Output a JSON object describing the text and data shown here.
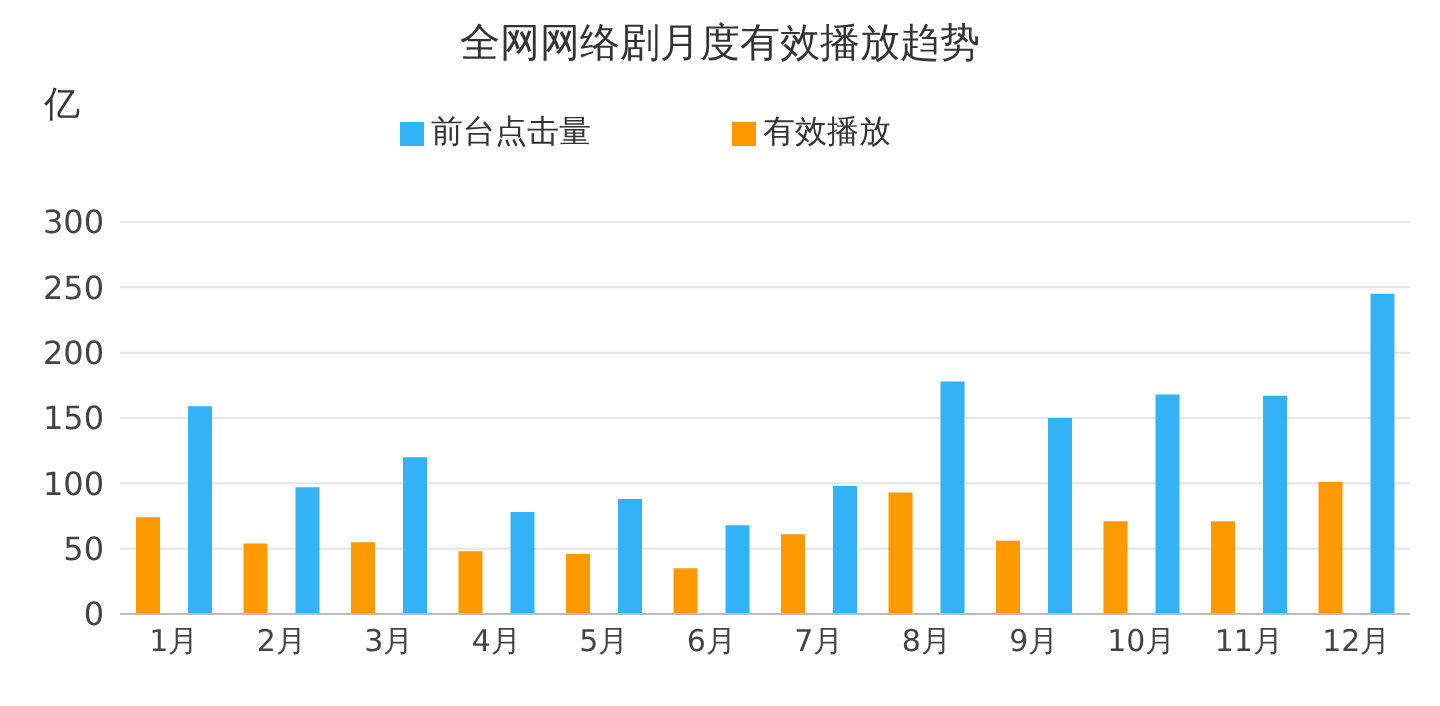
{
  "chart_data": {
    "type": "bar",
    "title": "全网网络剧月度有效播放趋势",
    "ylabel": "亿",
    "categories": [
      "1月",
      "2月",
      "3月",
      "4月",
      "5月",
      "6月",
      "7月",
      "8月",
      "9月",
      "10月",
      "11月",
      "12月"
    ],
    "series": [
      {
        "name": "有效播放",
        "color": "#ff9900",
        "values": [
          74,
          54,
          55,
          48,
          46,
          35,
          61,
          93,
          56,
          71,
          71,
          101
        ]
      },
      {
        "name": "前台点击量",
        "color": "#33b2f5",
        "values": [
          159,
          97,
          120,
          78,
          88,
          68,
          98,
          178,
          150,
          168,
          167,
          245
        ]
      }
    ],
    "ylim": [
      0,
      300
    ],
    "yticks": [
      0,
      50,
      100,
      150,
      200,
      250,
      300
    ],
    "grid": "y",
    "legend": "top"
  }
}
